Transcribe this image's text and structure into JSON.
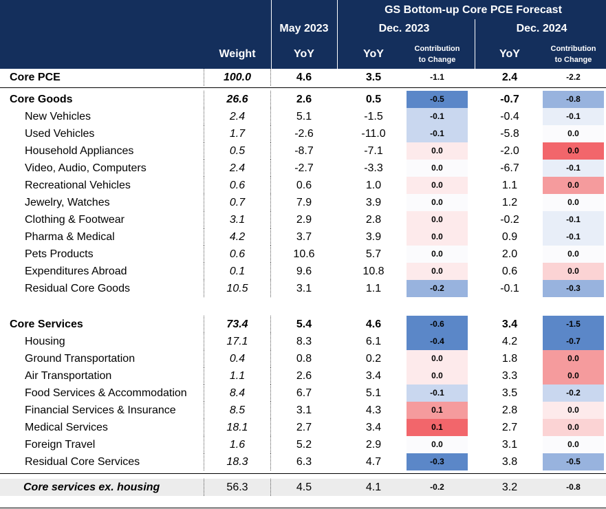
{
  "header": {
    "forecast_title": "GS Bottom-up Core PCE Forecast",
    "weight": "Weight",
    "may2023": "May 2023",
    "dec2023": "Dec. 2023",
    "dec2024": "Dec. 2024",
    "yoy": "YoY",
    "contribution_line1": "Contribution",
    "contribution_line2": "to Change"
  },
  "colors": {
    "header_bg": "#142f5c",
    "blue_strong": "#5b87c8",
    "blue_medium": "#98b3de",
    "blue_light": "#c9d7ef",
    "blue_faint": "#e8eef8",
    "red_strong": "#f2666b",
    "red_medium": "#f59b9d",
    "red_light": "#fbd3d4",
    "red_faint": "#fdeaeb",
    "neutral": "#fbfbfd"
  },
  "rows": [
    {
      "label": "Core PCE",
      "weight": "100.0",
      "may": "4.6",
      "d23": "3.5",
      "c23": "-1.1",
      "d24": "2.4",
      "c24": "-2.2",
      "bold": true,
      "c23bg": "",
      "c24bg": ""
    },
    {
      "label": "Core Goods",
      "weight": "26.6",
      "may": "2.6",
      "d23": "0.5",
      "c23": "-0.5",
      "d24": "-0.7",
      "c24": "-0.8",
      "bold": true,
      "c23bg": "blue_strong",
      "c24bg": "blue_medium"
    },
    {
      "label": "New Vehicles",
      "weight": "2.4",
      "may": "5.1",
      "d23": "-1.5",
      "c23": "-0.1",
      "d24": "-0.4",
      "c24": "-0.1",
      "c23bg": "blue_light",
      "c24bg": "blue_faint"
    },
    {
      "label": "Used Vehicles",
      "weight": "1.7",
      "may": "-2.6",
      "d23": "-11.0",
      "c23": "-0.1",
      "d24": "-5.8",
      "c24": "0.0",
      "c23bg": "blue_light",
      "c24bg": "neutral"
    },
    {
      "label": "Household Appliances",
      "weight": "0.5",
      "may": "-8.7",
      "d23": "-7.1",
      "c23": "0.0",
      "d24": "-2.0",
      "c24": "0.0",
      "c23bg": "red_faint",
      "c24bg": "red_strong"
    },
    {
      "label": "Video, Audio, Computers",
      "weight": "2.4",
      "may": "-2.7",
      "d23": "-3.3",
      "c23": "0.0",
      "d24": "-6.7",
      "c24": "-0.1",
      "c23bg": "neutral",
      "c24bg": "blue_faint"
    },
    {
      "label": "Recreational Vehicles",
      "weight": "0.6",
      "may": "0.6",
      "d23": "1.0",
      "c23": "0.0",
      "d24": "1.1",
      "c24": "0.0",
      "c23bg": "red_faint",
      "c24bg": "red_medium"
    },
    {
      "label": "Jewelry, Watches",
      "weight": "0.7",
      "may": "7.9",
      "d23": "3.9",
      "c23": "0.0",
      "d24": "1.2",
      "c24": "0.0",
      "c23bg": "neutral",
      "c24bg": "neutral"
    },
    {
      "label": "Clothing & Footwear",
      "weight": "3.1",
      "may": "2.9",
      "d23": "2.8",
      "c23": "0.0",
      "d24": "-0.2",
      "c24": "-0.1",
      "c23bg": "red_faint",
      "c24bg": "blue_faint"
    },
    {
      "label": "Pharma & Medical",
      "weight": "4.2",
      "may": "3.7",
      "d23": "3.9",
      "c23": "0.0",
      "d24": "0.9",
      "c24": "-0.1",
      "c23bg": "red_faint",
      "c24bg": "blue_faint"
    },
    {
      "label": "Pets Products",
      "weight": "0.6",
      "may": "10.6",
      "d23": "5.7",
      "c23": "0.0",
      "d24": "2.0",
      "c24": "0.0",
      "c23bg": "neutral",
      "c24bg": "neutral"
    },
    {
      "label": "Expenditures Abroad",
      "weight": "0.1",
      "may": "9.6",
      "d23": "10.8",
      "c23": "0.0",
      "d24": "0.6",
      "c24": "0.0",
      "c23bg": "red_faint",
      "c24bg": "red_light"
    },
    {
      "label": "Residual Core Goods",
      "weight": "10.5",
      "may": "3.1",
      "d23": "1.1",
      "c23": "-0.2",
      "d24": "-0.1",
      "c24": "-0.3",
      "c23bg": "blue_medium",
      "c24bg": "blue_medium"
    },
    {
      "label": "Core Services",
      "weight": "73.4",
      "may": "5.4",
      "d23": "4.6",
      "c23": "-0.6",
      "d24": "3.4",
      "c24": "-1.5",
      "bold": true,
      "c23bg": "blue_strong",
      "c24bg": "blue_strong"
    },
    {
      "label": "Housing",
      "weight": "17.1",
      "may": "8.3",
      "d23": "6.1",
      "c23": "-0.4",
      "d24": "4.2",
      "c24": "-0.7",
      "c23bg": "blue_strong",
      "c24bg": "blue_strong"
    },
    {
      "label": "Ground Transportation",
      "weight": "0.4",
      "may": "0.8",
      "d23": "0.2",
      "c23": "0.0",
      "d24": "1.8",
      "c24": "0.0",
      "c23bg": "red_faint",
      "c24bg": "red_medium"
    },
    {
      "label": "Air Transportation",
      "weight": "1.1",
      "may": "2.6",
      "d23": "3.4",
      "c23": "0.0",
      "d24": "3.3",
      "c24": "0.0",
      "c23bg": "red_faint",
      "c24bg": "red_medium"
    },
    {
      "label": "Food Services & Accommodation",
      "weight": "8.4",
      "may": "6.7",
      "d23": "5.1",
      "c23": "-0.1",
      "d24": "3.5",
      "c24": "-0.2",
      "c23bg": "blue_light",
      "c24bg": "blue_light"
    },
    {
      "label": "Financial Services & Insurance",
      "weight": "8.5",
      "may": "3.1",
      "d23": "4.3",
      "c23": "0.1",
      "d24": "2.8",
      "c24": "0.0",
      "c23bg": "red_medium",
      "c24bg": "red_faint"
    },
    {
      "label": "Medical Services",
      "weight": "18.1",
      "may": "2.7",
      "d23": "3.4",
      "c23": "0.1",
      "d24": "2.7",
      "c24": "0.0",
      "c23bg": "red_strong",
      "c24bg": "red_light"
    },
    {
      "label": "Foreign Travel",
      "weight": "1.6",
      "may": "5.2",
      "d23": "2.9",
      "c23": "0.0",
      "d24": "3.1",
      "c24": "0.0",
      "c23bg": "neutral",
      "c24bg": "neutral"
    },
    {
      "label": "Residual Core Services",
      "weight": "18.3",
      "may": "6.3",
      "d23": "4.7",
      "c23": "-0.3",
      "d24": "3.8",
      "c24": "-0.5",
      "c23bg": "blue_strong",
      "c24bg": "blue_medium"
    },
    {
      "label": "Core services ex. housing",
      "weight": "56.3",
      "may": "4.5",
      "d23": "4.1",
      "c23": "-0.2",
      "d24": "3.2",
      "c24": "-0.8",
      "c23bg": "",
      "c24bg": ""
    }
  ]
}
